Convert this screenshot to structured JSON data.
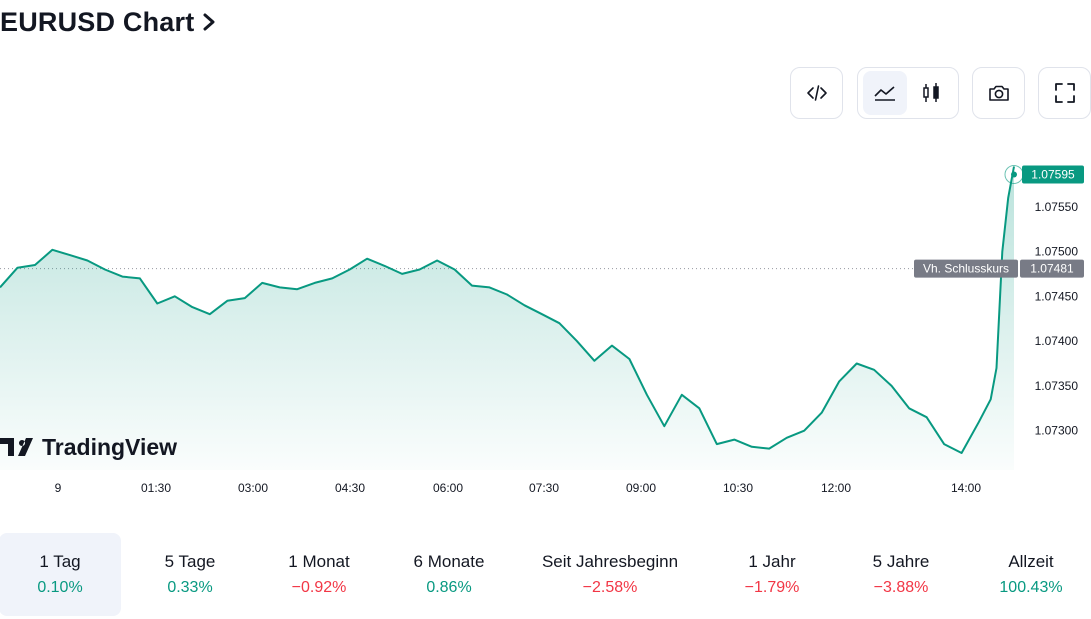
{
  "header": {
    "title": "EURUSD Chart"
  },
  "toolbar": {
    "groups": [
      {
        "buttons": [
          {
            "icon": "embed-code-icon",
            "active": false
          }
        ]
      },
      {
        "buttons": [
          {
            "icon": "area-chart-icon",
            "active": true
          },
          {
            "icon": "candles-icon",
            "active": false
          }
        ]
      },
      {
        "buttons": [
          {
            "icon": "camera-icon",
            "active": false
          }
        ]
      },
      {
        "buttons": [
          {
            "icon": "fullscreen-icon",
            "active": false
          }
        ]
      }
    ]
  },
  "logo": {
    "text": "TradingView"
  },
  "colors": {
    "line": "#089981",
    "positive": "#089981",
    "negative": "#f23645",
    "prev_close_label_bg": "#787b86",
    "active_period_bg": "#f0f3fa"
  },
  "chart_data": {
    "type": "area",
    "symbol": "EURUSD",
    "y_ticks": [
      "1.07550",
      "1.07500",
      "1.07450",
      "1.07400",
      "1.07350",
      "1.07300"
    ],
    "ylim": [
      1.07265,
      1.076
    ],
    "x_ticks": [
      "9",
      "01:30",
      "03:00",
      "04:30",
      "06:00",
      "07:30",
      "09:00",
      "10:30",
      "12:00",
      "14:00"
    ],
    "last_price": {
      "value": 1.07595,
      "label": "1.07595"
    },
    "previous_close": {
      "value": 1.07481,
      "label": "1.07481",
      "title": "Vh. Schlusskurs"
    },
    "series": [
      {
        "x": [
          "00:00",
          "00:15",
          "00:30",
          "00:45",
          "01:00",
          "01:15",
          "01:30",
          "01:45",
          "02:00",
          "02:15",
          "02:30",
          "02:45",
          "03:00",
          "03:15",
          "03:30",
          "03:45",
          "04:00",
          "04:15",
          "04:30",
          "04:45",
          "05:00",
          "05:15",
          "05:30",
          "05:45",
          "06:00",
          "06:15",
          "06:30",
          "06:45",
          "07:00",
          "07:15",
          "07:30",
          "07:45",
          "08:00",
          "08:15",
          "08:30",
          "08:45",
          "09:00",
          "09:15",
          "09:30",
          "09:45",
          "10:00",
          "10:15",
          "10:30",
          "10:45",
          "11:00",
          "11:15",
          "11:30",
          "11:45",
          "12:00",
          "12:15",
          "12:30",
          "12:45",
          "13:00",
          "13:15",
          "13:30",
          "13:45",
          "14:00",
          "14:10",
          "14:15",
          "14:20",
          "14:25",
          "14:30"
        ],
        "values": [
          1.0746,
          1.07482,
          1.07485,
          1.07502,
          1.07496,
          1.0749,
          1.0748,
          1.07472,
          1.0747,
          1.07442,
          1.0745,
          1.07438,
          1.0743,
          1.07445,
          1.07448,
          1.07465,
          1.0746,
          1.07458,
          1.07465,
          1.0747,
          1.0748,
          1.07492,
          1.07484,
          1.07475,
          1.0748,
          1.0749,
          1.0748,
          1.07462,
          1.0746,
          1.07452,
          1.0744,
          1.0743,
          1.0742,
          1.074,
          1.07378,
          1.07395,
          1.0738,
          1.0734,
          1.07305,
          1.0734,
          1.07325,
          1.07285,
          1.0729,
          1.07282,
          1.0728,
          1.07292,
          1.073,
          1.0732,
          1.07355,
          1.07375,
          1.07368,
          1.0735,
          1.07325,
          1.07315,
          1.07285,
          1.07275,
          1.0731,
          1.07335,
          1.0737,
          1.075,
          1.0756,
          1.07595
        ]
      }
    ],
    "periods": [
      {
        "label": "1 Tag",
        "change": "0.10%",
        "direction": "positive",
        "active": true
      },
      {
        "label": "5 Tage",
        "change": "0.33%",
        "direction": "positive",
        "active": false
      },
      {
        "label": "1 Monat",
        "change": "−0.92%",
        "direction": "negative",
        "active": false
      },
      {
        "label": "6 Monate",
        "change": "0.86%",
        "direction": "positive",
        "active": false
      },
      {
        "label": "Seit Jahresbeginn",
        "change": "−2.58%",
        "direction": "negative",
        "active": false
      },
      {
        "label": "1 Jahr",
        "change": "−1.79%",
        "direction": "negative",
        "active": false
      },
      {
        "label": "5 Jahre",
        "change": "−3.88%",
        "direction": "negative",
        "active": false
      },
      {
        "label": "Allzeit",
        "change": "100.43%",
        "direction": "positive",
        "active": false
      }
    ]
  }
}
